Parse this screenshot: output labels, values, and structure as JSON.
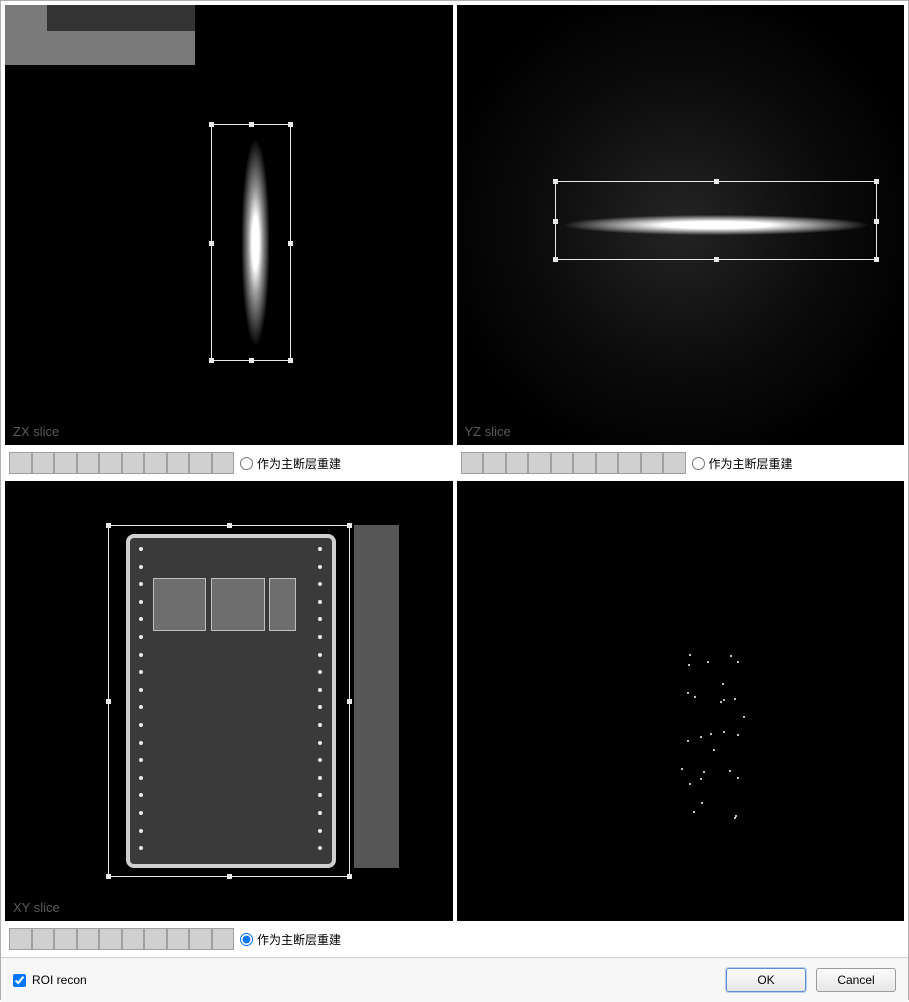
{
  "colors": {
    "canvas_bg": "#000000",
    "selection_border": "#e8e8e8",
    "slider_filled": "#d0d0d0",
    "slider_empty": "#f0f0f0",
    "footer_bg": "#f7f7f7",
    "button_border": "#9c9c9c",
    "primary_button_border": "#5a8fd6",
    "canvas_label": "#5a5a5a"
  },
  "panels": {
    "tl": {
      "label": "ZX slice",
      "selection": {
        "left_pct": 46,
        "top_pct": 27,
        "width_pct": 18,
        "height_pct": 54
      },
      "imagery": {
        "vertical_glow": {
          "left_pct": 53,
          "top_pct": 30,
          "width_pct": 6,
          "height_pct": 48
        },
        "bracket": {
          "left_pct": 4,
          "top_pct": 3,
          "width_pct": 42,
          "height_pct": 14
        }
      },
      "slider": {
        "segments": 10,
        "filled": 10
      },
      "radio": {
        "label": "作为主断层重建",
        "selected": false
      }
    },
    "tr": {
      "label": "YZ slice",
      "selection": {
        "left_pct": 22,
        "top_pct": 40,
        "width_pct": 72,
        "height_pct": 18
      },
      "imagery": {
        "horizontal_glow": {
          "left_pct": 20,
          "top_pct": 47,
          "width_pct": 76,
          "height_pct": 6
        }
      },
      "slider": {
        "segments": 10,
        "filled": 10
      },
      "radio": {
        "label": "作为主断层重建",
        "selected": false
      }
    },
    "bl": {
      "label": "XY slice",
      "selection": {
        "left_pct": 23,
        "top_pct": 10,
        "width_pct": 54,
        "height_pct": 80
      },
      "imagery": {
        "pcb": {
          "left_pct": 27,
          "top_pct": 12,
          "width_pct": 47,
          "height_pct": 76
        },
        "dark_bracket": {
          "left_pct": 78,
          "top_pct": 10,
          "width_pct": 10,
          "height_pct": 78
        },
        "chips": [
          {
            "left_pct": 33,
            "top_pct": 22,
            "width_pct": 12,
            "height_pct": 12
          },
          {
            "left_pct": 46,
            "top_pct": 22,
            "width_pct": 12,
            "height_pct": 12
          },
          {
            "left_pct": 59,
            "top_pct": 22,
            "width_pct": 6,
            "height_pct": 12
          }
        ],
        "via_columns": [
          {
            "left_pct": 30,
            "count": 18
          },
          {
            "left_pct": 70,
            "count": 18
          }
        ]
      },
      "slider": {
        "segments": 10,
        "filled": 10
      },
      "radio": {
        "label": "作为主断层重建",
        "selected": true
      }
    },
    "br": {
      "label": "",
      "sparks": 28
    }
  },
  "footer": {
    "checkbox_label": "ROI recon",
    "checkbox_checked": true,
    "ok_label": "OK",
    "cancel_label": "Cancel"
  }
}
